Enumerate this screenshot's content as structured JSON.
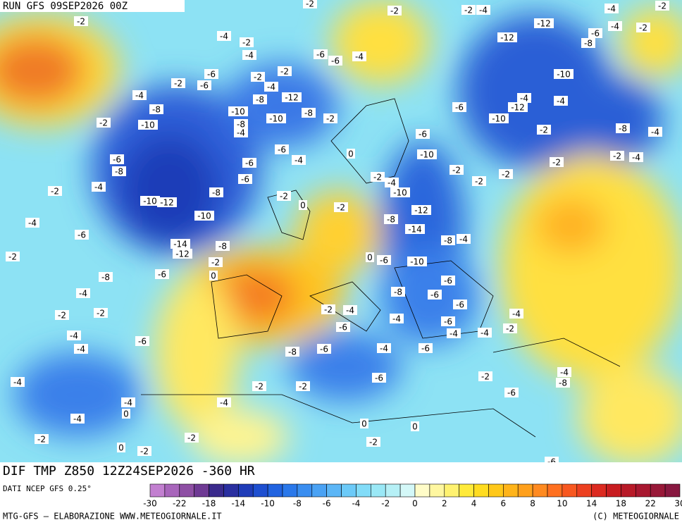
{
  "header": {
    "run": "RUN GFS 09SEP2026 00Z"
  },
  "map": {
    "title": "DIF TMP Z850 12Z24SEP2026 -360 HR",
    "labels": [
      -2,
      -2,
      -2,
      -2,
      -4,
      -4,
      -2,
      -12,
      -12,
      -6,
      -8,
      -4,
      -2,
      -4,
      -2,
      -4,
      -6,
      -6,
      -4,
      -6,
      -2,
      -6,
      -2,
      -2,
      -4,
      -4,
      -12,
      -8,
      -8,
      -10,
      -8,
      -10,
      -8,
      -2,
      -2,
      -10,
      -4,
      -6,
      -4,
      -6,
      -6,
      0,
      -6,
      -8,
      -4,
      -2,
      -8,
      -2,
      0,
      -2,
      -2,
      -4,
      -10,
      -10,
      -12,
      -10,
      -4,
      -6,
      -8,
      -12,
      -14,
      -8,
      -4,
      -14,
      -8,
      -12,
      -2,
      -2,
      0,
      -6,
      -10,
      0,
      -8,
      -6,
      -4,
      -8,
      -6,
      -6,
      -2,
      -4,
      -2,
      -2,
      -6,
      -4,
      -6,
      -6,
      -4,
      -4,
      -4,
      -2,
      -4,
      -6,
      -4,
      -8,
      -6,
      -4,
      -6,
      -6,
      -2,
      -2,
      -4,
      -2,
      -4,
      -8,
      -6,
      -4,
      0,
      -4,
      -4,
      0,
      0,
      -2,
      -2,
      0,
      -2,
      -2,
      -2,
      -6,
      -6,
      -10,
      -6,
      -4,
      -12,
      -10,
      -4,
      -10,
      -2,
      -8,
      -4,
      -2,
      -4,
      -2,
      -2,
      -2,
      -2
    ]
  },
  "legend": {
    "source": "DATI NCEP GFS 0.25°",
    "colors": [
      "#c27fd0",
      "#a865bb",
      "#8e4fa4",
      "#6f3a94",
      "#3a2a8c",
      "#2a2fa0",
      "#1f3cb8",
      "#1e4fd0",
      "#2163e0",
      "#2a78ea",
      "#3a8ef0",
      "#4aa2f4",
      "#5cb6f6",
      "#6ccaf8",
      "#82dcf8",
      "#9ae8f6",
      "#b6f0f6",
      "#d4f8f8",
      "#fffcc8",
      "#fff7a0",
      "#fff270",
      "#ffea3a",
      "#ffdc20",
      "#ffc81a",
      "#ffb41a",
      "#ffa01c",
      "#ff8a20",
      "#ff7020",
      "#f85820",
      "#ec4020",
      "#dc2a20",
      "#c81c20",
      "#b81a28",
      "#a81830",
      "#981838",
      "#881840"
    ],
    "ticks": [
      -30,
      -22,
      -18,
      -14,
      -10,
      -8,
      -6,
      -4,
      -2,
      0,
      2,
      4,
      6,
      8,
      10,
      14,
      18,
      22,
      30
    ]
  },
  "footer": {
    "credit": "MTG-GFS — ELABORAZIONE WWW.METEOGIORNALE.IT",
    "copyright": "(C) METEOGIORNALE"
  }
}
